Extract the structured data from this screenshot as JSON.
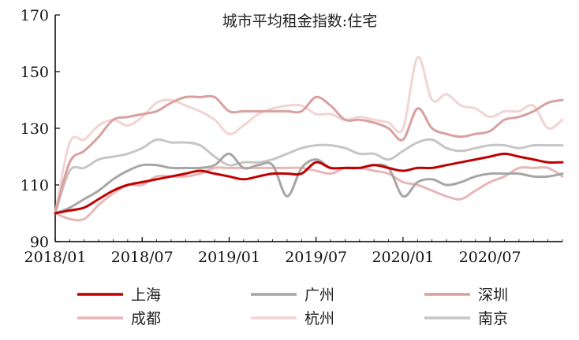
{
  "chart_data": {
    "type": "line",
    "title": "城市平均租金指数:住宅",
    "xlabel": "",
    "ylabel": "",
    "ylim": [
      90,
      170
    ],
    "yticks": [
      90,
      110,
      130,
      150,
      170
    ],
    "x_start": "2018/01",
    "x_end": "2020/12",
    "xticks": [
      "2018/01",
      "2018/07",
      "2019/01",
      "2019/07",
      "2020/01",
      "2020/07"
    ],
    "x": [
      "2018/01",
      "2018/02",
      "2018/03",
      "2018/04",
      "2018/05",
      "2018/06",
      "2018/07",
      "2018/08",
      "2018/09",
      "2018/10",
      "2018/11",
      "2018/12",
      "2019/01",
      "2019/02",
      "2019/03",
      "2019/04",
      "2019/05",
      "2019/06",
      "2019/07",
      "2019/08",
      "2019/09",
      "2019/10",
      "2019/11",
      "2019/12",
      "2020/01",
      "2020/02",
      "2020/03",
      "2020/04",
      "2020/05",
      "2020/06",
      "2020/07",
      "2020/08",
      "2020/09",
      "2020/10",
      "2020/11",
      "2020/12"
    ],
    "grid": false,
    "legend_position": "bottom",
    "series": [
      {
        "name": "上海",
        "color": "#c00000",
        "width": 3,
        "values": [
          100,
          101,
          102,
          105,
          108,
          110,
          111,
          112,
          113,
          114,
          115,
          114,
          113,
          112,
          113,
          114,
          114,
          114,
          118,
          116,
          116,
          116,
          117,
          116,
          115,
          116,
          116,
          117,
          118,
          119,
          120,
          121,
          120,
          119,
          118,
          118
        ]
      },
      {
        "name": "广州",
        "color": "#a6a6a6",
        "width": 3,
        "values": [
          100,
          102,
          105,
          108,
          112,
          115,
          117,
          117,
          116,
          116,
          116,
          117,
          121,
          116,
          117,
          117,
          106,
          116,
          119,
          116,
          116,
          116,
          117,
          116,
          106,
          111,
          112,
          110,
          111,
          113,
          114,
          114,
          114,
          113,
          113,
          114
        ]
      },
      {
        "name": "深圳",
        "color": "#d9a0a0",
        "width": 3,
        "values": [
          100,
          118,
          122,
          127,
          133,
          134,
          135,
          136,
          139,
          141,
          141,
          141,
          136,
          136,
          136,
          136,
          136,
          136,
          141,
          138,
          133,
          133,
          132,
          130,
          126,
          137,
          130,
          128,
          127,
          128,
          129,
          133,
          134,
          136,
          139,
          140
        ]
      },
      {
        "name": "成都",
        "color": "#e8b6b6",
        "width": 3,
        "values": [
          100,
          98,
          98,
          103,
          107,
          110,
          110,
          113,
          113,
          113,
          114,
          116,
          116,
          116,
          116,
          116,
          116,
          116,
          115,
          114,
          116,
          116,
          115,
          114,
          111,
          110,
          108,
          106,
          105,
          108,
          111,
          113,
          116,
          116,
          116,
          113
        ]
      },
      {
        "name": "杭州",
        "color": "#f2d4d4",
        "width": 3,
        "values": [
          100,
          125,
          126,
          131,
          133,
          131,
          134,
          139,
          140,
          138,
          136,
          133,
          128,
          131,
          135,
          137,
          138,
          138,
          135,
          135,
          133,
          134,
          133,
          132,
          130,
          155,
          140,
          142,
          138,
          137,
          134,
          136,
          136,
          138,
          130,
          133
        ]
      },
      {
        "name": "南京",
        "color": "#c6c6c6",
        "width": 3,
        "values": [
          100,
          115,
          116,
          119,
          120,
          121,
          123,
          126,
          125,
          125,
          124,
          120,
          117,
          118,
          118,
          119,
          121,
          123,
          124,
          124,
          123,
          121,
          121,
          119,
          122,
          125,
          126,
          123,
          122,
          123,
          124,
          124,
          123,
          124,
          124,
          124
        ]
      }
    ]
  }
}
